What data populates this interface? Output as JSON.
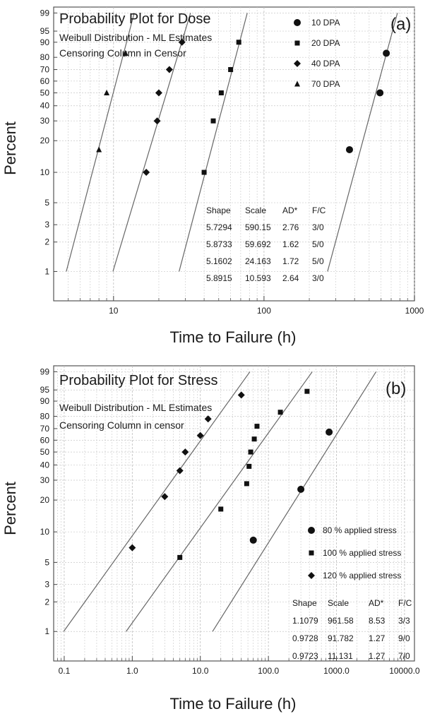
{
  "chart_data": [
    {
      "type": "scatter",
      "panel_label": "(a)",
      "title": "Probability Plot for Dose",
      "subtitle_lines": [
        "Weibull Distribution - ML Estimates",
        "Censoring Column in Censor"
      ],
      "xlabel": "Time to Failure (h)",
      "ylabel": "Percent",
      "x_scale": "log",
      "y_scale": "weibull",
      "xlim": [
        4,
        1000
      ],
      "ylim": [
        0.5,
        99.5
      ],
      "x_ticks": [
        10,
        100,
        1000
      ],
      "x_tick_labels": [
        "10",
        "100",
        "1000"
      ],
      "y_ticks": [
        1,
        2,
        3,
        5,
        10,
        20,
        30,
        40,
        50,
        60,
        70,
        80,
        90,
        95,
        99
      ],
      "y_tick_labels": [
        "1",
        "2",
        "3",
        "5",
        "10",
        "20",
        "30",
        "40",
        "50",
        "60",
        "70",
        "80",
        "90",
        "95",
        "99"
      ],
      "grid": true,
      "legend_position": "top-right",
      "series": [
        {
          "name": "10 DPA",
          "marker": "circle",
          "shape": 5.7294,
          "scale": 590.15,
          "x": [
            370,
            590,
            650
          ],
          "y": [
            16.5,
            50,
            83
          ]
        },
        {
          "name": "20 DPA",
          "marker": "square",
          "shape": 5.8733,
          "scale": 59.692,
          "x": [
            40,
            46,
            52,
            60,
            68
          ],
          "y": [
            10,
            30,
            50,
            70,
            90
          ]
        },
        {
          "name": "40 DPA",
          "marker": "diamond",
          "shape": 5.1602,
          "scale": 24.163,
          "x": [
            16.5,
            19.5,
            20,
            23.5,
            28.5
          ],
          "y": [
            10,
            30,
            50,
            70,
            90
          ]
        },
        {
          "name": "70 DPA",
          "marker": "triangle",
          "shape": 5.8915,
          "scale": 10.593,
          "x": [
            8,
            9,
            12
          ],
          "y": [
            16.5,
            50,
            83
          ]
        }
      ],
      "fit_table": {
        "headers": [
          "Shape",
          "Scale",
          "AD*",
          "F/C"
        ],
        "rows": [
          [
            "5.7294",
            "590.15",
            "2.76",
            "3/0"
          ],
          [
            "5.8733",
            "59.692",
            "1.62",
            "5/0"
          ],
          [
            "5.1602",
            "24.163",
            "1.72",
            "5/0"
          ],
          [
            "5.8915",
            "10.593",
            "2.64",
            "3/0"
          ]
        ]
      }
    },
    {
      "type": "scatter",
      "panel_label": "(b)",
      "title": "Probability Plot for Stress",
      "subtitle_lines": [
        "Weibull Distribution - ML Estimates",
        "Censoring Column in censor"
      ],
      "xlabel": "Time to Failure (h)",
      "ylabel": "Percent",
      "x_scale": "log",
      "y_scale": "weibull",
      "xlim": [
        0.07,
        14000
      ],
      "ylim": [
        0.5,
        99.5
      ],
      "x_ticks": [
        0.1,
        1,
        10,
        100,
        1000,
        10000
      ],
      "x_tick_labels": [
        "0.1",
        "1.0",
        "10.0",
        "100.0",
        "1000.0",
        "10000.0"
      ],
      "y_ticks": [
        1,
        2,
        3,
        5,
        10,
        20,
        30,
        40,
        50,
        60,
        70,
        80,
        90,
        95,
        99
      ],
      "y_tick_labels": [
        "1",
        "2",
        "3",
        "5",
        "10",
        "20",
        "30",
        "40",
        "50",
        "60",
        "70",
        "80",
        "90",
        "95",
        "99"
      ],
      "grid": true,
      "legend_position": "bottom-right",
      "series": [
        {
          "name": "80 % applied stress",
          "marker": "circle",
          "shape": 1.1079,
          "scale": 961.58,
          "x": [
            60,
            300,
            780
          ],
          "y": [
            8.3,
            25,
            67
          ]
        },
        {
          "name": "100 % applied stress",
          "marker": "square",
          "shape": 0.9728,
          "scale": 91.782,
          "x": [
            5,
            20,
            48,
            52,
            55,
            62,
            68,
            150,
            370
          ],
          "y": [
            5.6,
            16.5,
            28,
            39,
            50,
            61,
            72,
            83,
            94.5
          ]
        },
        {
          "name": "120 % applied stress",
          "marker": "diamond",
          "shape": 0.9723,
          "scale": 11.131,
          "x": [
            1,
            3,
            5,
            6,
            10,
            13,
            40
          ],
          "y": [
            7,
            21.5,
            36,
            50,
            64,
            78,
            93
          ]
        }
      ],
      "fit_table": {
        "headers": [
          "Shape",
          "Scale",
          "AD*",
          "F/C"
        ],
        "rows": [
          [
            "1.1079",
            "961.58",
            "8.53",
            "3/3"
          ],
          [
            "0.9728",
            "91.782",
            "1.27",
            "9/0"
          ],
          [
            "0.9723",
            "11.131",
            "1.27",
            "7/0"
          ]
        ]
      }
    }
  ]
}
